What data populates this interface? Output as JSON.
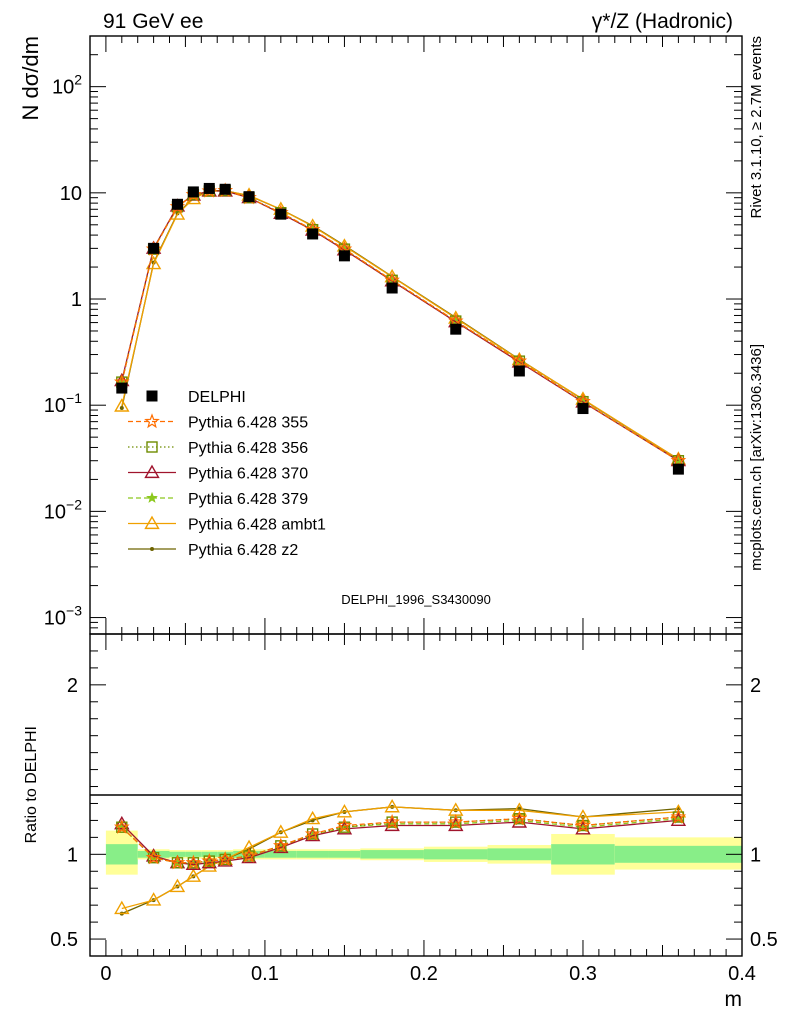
{
  "header": {
    "left": "91 GeV ee",
    "right": "γ*/Z (Hadronic)"
  },
  "side_labels": {
    "rivet": "Rivet 3.1.10, ≥ 2.7M events",
    "mcplots": "mcplots.cern.ch [arXiv:1306.3436]"
  },
  "watermark": "DELPHI_1996_S3430090",
  "chart_data": [
    {
      "type": "scatter",
      "panel": "main",
      "ylabel": "N dσ/dm",
      "yscale": "log",
      "ylim": [
        0.0007,
        300
      ],
      "xlim": [
        -0.01,
        0.4
      ],
      "yticks": [
        {
          "v": 0.001,
          "base": "10",
          "exp": "−3"
        },
        {
          "v": 0.01,
          "base": "10",
          "exp": "−2"
        },
        {
          "v": 0.1,
          "base": "10",
          "exp": "−1"
        },
        {
          "v": 1,
          "base": "1",
          "exp": ""
        },
        {
          "v": 10,
          "base": "10",
          "exp": ""
        },
        {
          "v": 100,
          "base": "10",
          "exp": "2"
        }
      ],
      "x": [
        0.01,
        0.03,
        0.045,
        0.055,
        0.065,
        0.075,
        0.09,
        0.11,
        0.13,
        0.15,
        0.18,
        0.22,
        0.26,
        0.3,
        0.36
      ],
      "series": [
        {
          "name": "DELPHI",
          "color": "#000000",
          "marker": "square",
          "style": "none",
          "values": [
            0.145,
            3.0,
            7.8,
            10.2,
            11.0,
            10.8,
            9.2,
            6.3,
            4.1,
            2.55,
            1.27,
            0.52,
            0.21,
            0.093,
            0.025
          ]
        },
        {
          "name": "Pythia 6.428 355",
          "color": "#ff6e00",
          "marker": "star-open",
          "style": "dashed",
          "values": [
            0.165,
            2.95,
            7.4,
            9.6,
            10.4,
            10.5,
            9.0,
            6.5,
            4.5,
            2.95,
            1.5,
            0.62,
            0.26,
            0.108,
            0.03
          ]
        },
        {
          "name": "Pythia 6.428 356",
          "color": "#6e8c00",
          "marker": "square-open",
          "style": "dotted",
          "values": [
            0.165,
            2.95,
            7.4,
            9.6,
            10.4,
            10.5,
            9.0,
            6.5,
            4.5,
            2.95,
            1.5,
            0.62,
            0.26,
            0.108,
            0.03
          ]
        },
        {
          "name": "Pythia 6.428 370",
          "color": "#a0142d",
          "marker": "triangle-open",
          "style": "solid",
          "values": [
            0.17,
            3.0,
            7.5,
            9.5,
            10.4,
            10.4,
            9.0,
            6.4,
            4.45,
            2.9,
            1.48,
            0.61,
            0.255,
            0.107,
            0.03
          ]
        },
        {
          "name": "Pythia 6.428 379",
          "color": "#8cc81e",
          "marker": "star",
          "style": "dashed",
          "values": [
            0.165,
            2.95,
            7.4,
            9.6,
            10.4,
            10.5,
            9.0,
            6.5,
            4.5,
            2.95,
            1.5,
            0.62,
            0.26,
            0.108,
            0.03
          ]
        },
        {
          "name": "Pythia 6.428 ambt1",
          "color": "#f0a000",
          "marker": "triangle-open",
          "style": "solid",
          "values": [
            0.098,
            2.15,
            6.3,
            8.8,
            10.4,
            10.4,
            9.5,
            7.0,
            4.85,
            3.15,
            1.62,
            0.66,
            0.268,
            0.114,
            0.031
          ]
        },
        {
          "name": "Pythia 6.428 z2",
          "color": "#6e6400",
          "marker": "dot",
          "style": "solid",
          "values": [
            0.094,
            2.2,
            6.4,
            8.9,
            10.5,
            10.5,
            9.4,
            7.0,
            4.9,
            3.2,
            1.63,
            0.67,
            0.27,
            0.113,
            0.031
          ]
        }
      ]
    },
    {
      "type": "scatter",
      "panel": "ratio",
      "xlabel": "m",
      "ylabel": "Ratio to DELPHI",
      "ylim": [
        0.4,
        2.3
      ],
      "xlim": [
        -0.01,
        0.4
      ],
      "yticks": [
        0.5,
        1,
        2
      ],
      "xticks": [
        0,
        0.1,
        0.2,
        0.3,
        0.4
      ],
      "xticklabels": [
        "0",
        "0.1",
        "0.2",
        "0.3",
        "0.4"
      ],
      "reference": 1,
      "bands": [
        {
          "x0": 0.0,
          "x1": 0.02,
          "stat": [
            0.94,
            1.06
          ],
          "syst": [
            0.88,
            1.14
          ]
        },
        {
          "x0": 0.02,
          "x1": 0.04,
          "stat": [
            0.98,
            1.02
          ],
          "syst": [
            0.97,
            1.03
          ]
        },
        {
          "x0": 0.04,
          "x1": 0.05,
          "stat": [
            0.985,
            1.015
          ],
          "syst": [
            0.975,
            1.025
          ]
        },
        {
          "x0": 0.05,
          "x1": 0.06,
          "stat": [
            0.985,
            1.015
          ],
          "syst": [
            0.975,
            1.025
          ]
        },
        {
          "x0": 0.06,
          "x1": 0.07,
          "stat": [
            0.985,
            1.015
          ],
          "syst": [
            0.975,
            1.025
          ]
        },
        {
          "x0": 0.07,
          "x1": 0.08,
          "stat": [
            0.985,
            1.015
          ],
          "syst": [
            0.975,
            1.025
          ]
        },
        {
          "x0": 0.08,
          "x1": 0.1,
          "stat": [
            0.98,
            1.02
          ],
          "syst": [
            0.97,
            1.03
          ]
        },
        {
          "x0": 0.1,
          "x1": 0.12,
          "stat": [
            0.98,
            1.02
          ],
          "syst": [
            0.97,
            1.03
          ]
        },
        {
          "x0": 0.12,
          "x1": 0.14,
          "stat": [
            0.98,
            1.02
          ],
          "syst": [
            0.97,
            1.03
          ]
        },
        {
          "x0": 0.14,
          "x1": 0.16,
          "stat": [
            0.98,
            1.02
          ],
          "syst": [
            0.97,
            1.03
          ]
        },
        {
          "x0": 0.16,
          "x1": 0.2,
          "stat": [
            0.975,
            1.025
          ],
          "syst": [
            0.965,
            1.035
          ]
        },
        {
          "x0": 0.2,
          "x1": 0.24,
          "stat": [
            0.97,
            1.03
          ],
          "syst": [
            0.955,
            1.045
          ]
        },
        {
          "x0": 0.24,
          "x1": 0.28,
          "stat": [
            0.965,
            1.035
          ],
          "syst": [
            0.945,
            1.055
          ]
        },
        {
          "x0": 0.28,
          "x1": 0.32,
          "stat": [
            0.94,
            1.06
          ],
          "syst": [
            0.88,
            1.12
          ]
        },
        {
          "x0": 0.32,
          "x1": 0.4,
          "stat": [
            0.95,
            1.05
          ],
          "syst": [
            0.91,
            1.1
          ]
        }
      ],
      "x": [
        0.01,
        0.03,
        0.045,
        0.055,
        0.065,
        0.075,
        0.09,
        0.11,
        0.13,
        0.15,
        0.18,
        0.22,
        0.26,
        0.3,
        0.36
      ],
      "series": [
        {
          "name": "Pythia 6.428 355",
          "color": "#ff6e00",
          "marker": "star-open",
          "style": "dashed",
          "values": [
            1.16,
            0.98,
            0.95,
            0.95,
            0.96,
            0.97,
            0.99,
            1.05,
            1.12,
            1.17,
            1.19,
            1.19,
            1.21,
            1.17,
            1.22
          ]
        },
        {
          "name": "Pythia 6.428 356",
          "color": "#6e8c00",
          "marker": "square-open",
          "style": "dotted",
          "values": [
            1.16,
            0.98,
            0.95,
            0.95,
            0.96,
            0.97,
            0.99,
            1.05,
            1.12,
            1.16,
            1.19,
            1.19,
            1.21,
            1.17,
            1.22
          ]
        },
        {
          "name": "Pythia 6.428 370",
          "color": "#a0142d",
          "marker": "triangle-open",
          "style": "solid",
          "values": [
            1.18,
            0.99,
            0.95,
            0.94,
            0.95,
            0.96,
            0.98,
            1.04,
            1.11,
            1.15,
            1.17,
            1.17,
            1.19,
            1.15,
            1.2
          ]
        },
        {
          "name": "Pythia 6.428 379",
          "color": "#8cc81e",
          "marker": "star",
          "style": "dashed",
          "values": [
            1.16,
            0.98,
            0.95,
            0.95,
            0.96,
            0.97,
            0.99,
            1.05,
            1.11,
            1.16,
            1.18,
            1.18,
            1.2,
            1.16,
            1.21
          ]
        },
        {
          "name": "Pythia 6.428 ambt1",
          "color": "#f0a000",
          "marker": "triangle-open",
          "style": "solid",
          "values": [
            0.68,
            0.73,
            0.81,
            0.87,
            0.93,
            0.97,
            1.04,
            1.13,
            1.21,
            1.25,
            1.28,
            1.26,
            1.26,
            1.22,
            1.25
          ]
        },
        {
          "name": "Pythia 6.428 z2",
          "color": "#6e6400",
          "marker": "dot",
          "style": "solid",
          "values": [
            0.65,
            0.73,
            0.81,
            0.87,
            0.93,
            0.97,
            1.03,
            1.13,
            1.2,
            1.25,
            1.28,
            1.26,
            1.27,
            1.22,
            1.27
          ]
        }
      ]
    }
  ],
  "colors": {
    "stat_band": "#88ee88",
    "syst_band": "#ffff99",
    "watermark": "#999999",
    "side_text": "#888888"
  }
}
